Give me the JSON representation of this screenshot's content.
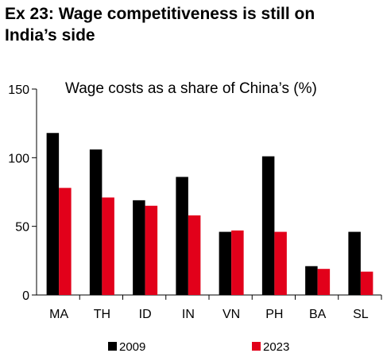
{
  "heading": {
    "line1": "Ex 23: Wage competitiveness is still on",
    "line2": "India’s side"
  },
  "chart_data": {
    "type": "bar",
    "title": "Wage costs as a share of China’s (%)",
    "xlabel": "",
    "ylabel": "",
    "categories": [
      "MA",
      "TH",
      "ID",
      "IN",
      "VN",
      "PH",
      "BA",
      "SL"
    ],
    "series": [
      {
        "name": "2009",
        "color": "#000000",
        "values": [
          118,
          106,
          69,
          86,
          46,
          101,
          21,
          46
        ]
      },
      {
        "name": "2023",
        "color": "#e2001a",
        "values": [
          78,
          71,
          65,
          58,
          47,
          46,
          19,
          17
        ]
      }
    ],
    "ylim": [
      0,
      150
    ],
    "yticks": [
      0,
      50,
      100,
      150
    ],
    "grid": false,
    "legend": "bottom"
  }
}
